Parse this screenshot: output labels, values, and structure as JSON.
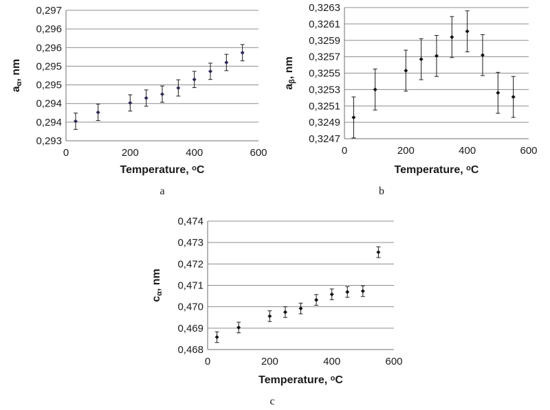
{
  "chart_data": [
    {
      "type": "scatter",
      "panel_label": "a",
      "xlabel": "Temperature, ",
      "xlabel_sup": "o",
      "xlabel_tail": "C",
      "ylabel_main": "a",
      "ylabel_sub": "α",
      "ylabel_tail": ", nm",
      "xlim": [
        0,
        600
      ],
      "x_ticks": [
        "0",
        "200",
        "400",
        "600"
      ],
      "ylim": [
        0.293,
        0.297
      ],
      "y_ticks": [
        "0,293",
        "0,294",
        "0,294",
        "0,295",
        "0,295",
        "0,296",
        "0,296",
        "0,297"
      ],
      "marker_color": "#2b2b55",
      "grid": true,
      "x": [
        30,
        100,
        200,
        250,
        300,
        350,
        400,
        450,
        500,
        550
      ],
      "y": [
        0.2936,
        0.29387,
        0.29416,
        0.29431,
        0.29443,
        0.29462,
        0.29488,
        0.29513,
        0.2954,
        0.2957
      ],
      "err": [
        0.00025,
        0.00025,
        0.00025,
        0.00025,
        0.00025,
        0.00025,
        0.00025,
        0.00025,
        0.00025,
        0.00025
      ]
    },
    {
      "type": "scatter",
      "panel_label": "b",
      "xlabel": "Temperature, ",
      "xlabel_sup": "o",
      "xlabel_tail": "C",
      "ylabel_main": "a",
      "ylabel_sub": "β",
      "ylabel_tail": ", nm",
      "xlim": [
        0,
        600
      ],
      "x_ticks": [
        "0",
        "200",
        "400",
        "600"
      ],
      "ylim": [
        0.3247,
        0.3263
      ],
      "y_ticks": [
        "0,3247",
        "0,3249",
        "0,3251",
        "0,3253",
        "0,3255",
        "0,3257",
        "0,3259",
        "0,3261",
        "0,3263"
      ],
      "marker_color": "#111111",
      "grid": true,
      "x": [
        30,
        100,
        200,
        250,
        300,
        350,
        400,
        450,
        500,
        550
      ],
      "y": [
        0.32496,
        0.3253,
        0.32553,
        0.32567,
        0.32571,
        0.32594,
        0.32601,
        0.32572,
        0.32526,
        0.32521
      ],
      "err": [
        0.00025,
        0.00025,
        0.00025,
        0.00025,
        0.00025,
        0.00025,
        0.00025,
        0.00025,
        0.00025,
        0.00025
      ]
    },
    {
      "type": "scatter",
      "panel_label": "c",
      "xlabel": "Temperature, ",
      "xlabel_sup": "o",
      "xlabel_tail": "C",
      "ylabel_main": "c",
      "ylabel_sub": "α",
      "ylabel_tail": ", nm",
      "xlim": [
        0,
        600
      ],
      "x_ticks": [
        "0",
        "200",
        "400",
        "600"
      ],
      "ylim": [
        0.468,
        0.474
      ],
      "y_ticks": [
        "0,468",
        "0,469",
        "0,470",
        "0,471",
        "0,472",
        "0,473",
        "0,474"
      ],
      "marker_color": "#111111",
      "grid": true,
      "x": [
        30,
        100,
        200,
        250,
        300,
        350,
        400,
        450,
        500,
        550
      ],
      "y": [
        0.46858,
        0.46903,
        0.46956,
        0.46975,
        0.46992,
        0.47032,
        0.47058,
        0.47069,
        0.47073,
        0.47255
      ],
      "err": [
        0.00025,
        0.00025,
        0.00025,
        0.00025,
        0.00025,
        0.00025,
        0.00025,
        0.00025,
        0.00025,
        0.00025
      ]
    }
  ]
}
